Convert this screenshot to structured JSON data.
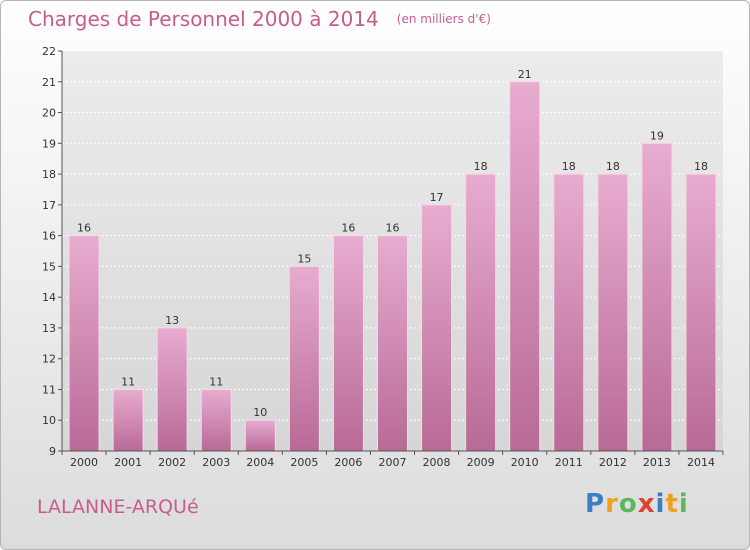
{
  "header": {
    "title": "Charges de Personnel 2000 à 2014",
    "subtitle": "(en milliers d'€)"
  },
  "footer": {
    "place": "LALANNE-ARQUé",
    "logo": "Proxiti"
  },
  "colors": {
    "bar": "#d48ab4",
    "bar_light": "#eab4d6",
    "accent": "#c65d8c"
  },
  "chart_data": {
    "type": "bar",
    "title": "Charges de Personnel 2000 à 2014",
    "subtitle": "(en milliers d'€)",
    "categories": [
      "2000",
      "2001",
      "2002",
      "2003",
      "2004",
      "2005",
      "2006",
      "2007",
      "2008",
      "2009",
      "2010",
      "2011",
      "2012",
      "2013",
      "2014"
    ],
    "values": [
      16,
      11,
      13,
      11,
      10,
      15,
      16,
      16,
      17,
      18,
      21,
      18,
      18,
      19,
      18
    ],
    "ylim": [
      9,
      22
    ],
    "yticks": [
      9,
      10,
      11,
      12,
      13,
      14,
      15,
      16,
      17,
      18,
      19,
      20,
      21,
      22
    ],
    "ytick_labels": [
      "9",
      "10",
      "11",
      "12",
      "13",
      "14",
      "15",
      "16",
      "17",
      "18",
      "19",
      "20",
      "21",
      "22"
    ],
    "grid": true
  }
}
